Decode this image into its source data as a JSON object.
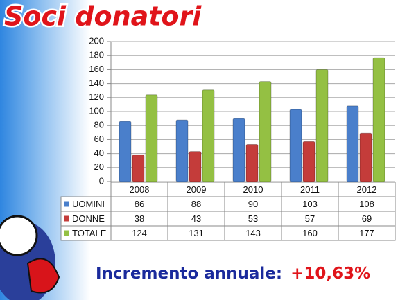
{
  "chart_data": {
    "type": "bar",
    "title": "Soci donatori",
    "categories": [
      "2008",
      "2009",
      "2010",
      "2011",
      "2012"
    ],
    "series": [
      {
        "name": "UOMINI",
        "color": "#4a7fcb",
        "values": [
          86,
          88,
          90,
          103,
          108
        ]
      },
      {
        "name": "DONNE",
        "color": "#c43c3a",
        "values": [
          38,
          43,
          53,
          57,
          69
        ]
      },
      {
        "name": "TOTALE",
        "color": "#94c043",
        "values": [
          124,
          131,
          143,
          160,
          177
        ]
      }
    ],
    "ylim": [
      0,
      200
    ],
    "yticks": [
      0,
      20,
      40,
      60,
      80,
      100,
      120,
      140,
      160,
      180,
      200
    ],
    "grid": true,
    "data_table": true,
    "annotation": {
      "label": "Incremento annuale:",
      "value": "+10,63%"
    }
  }
}
